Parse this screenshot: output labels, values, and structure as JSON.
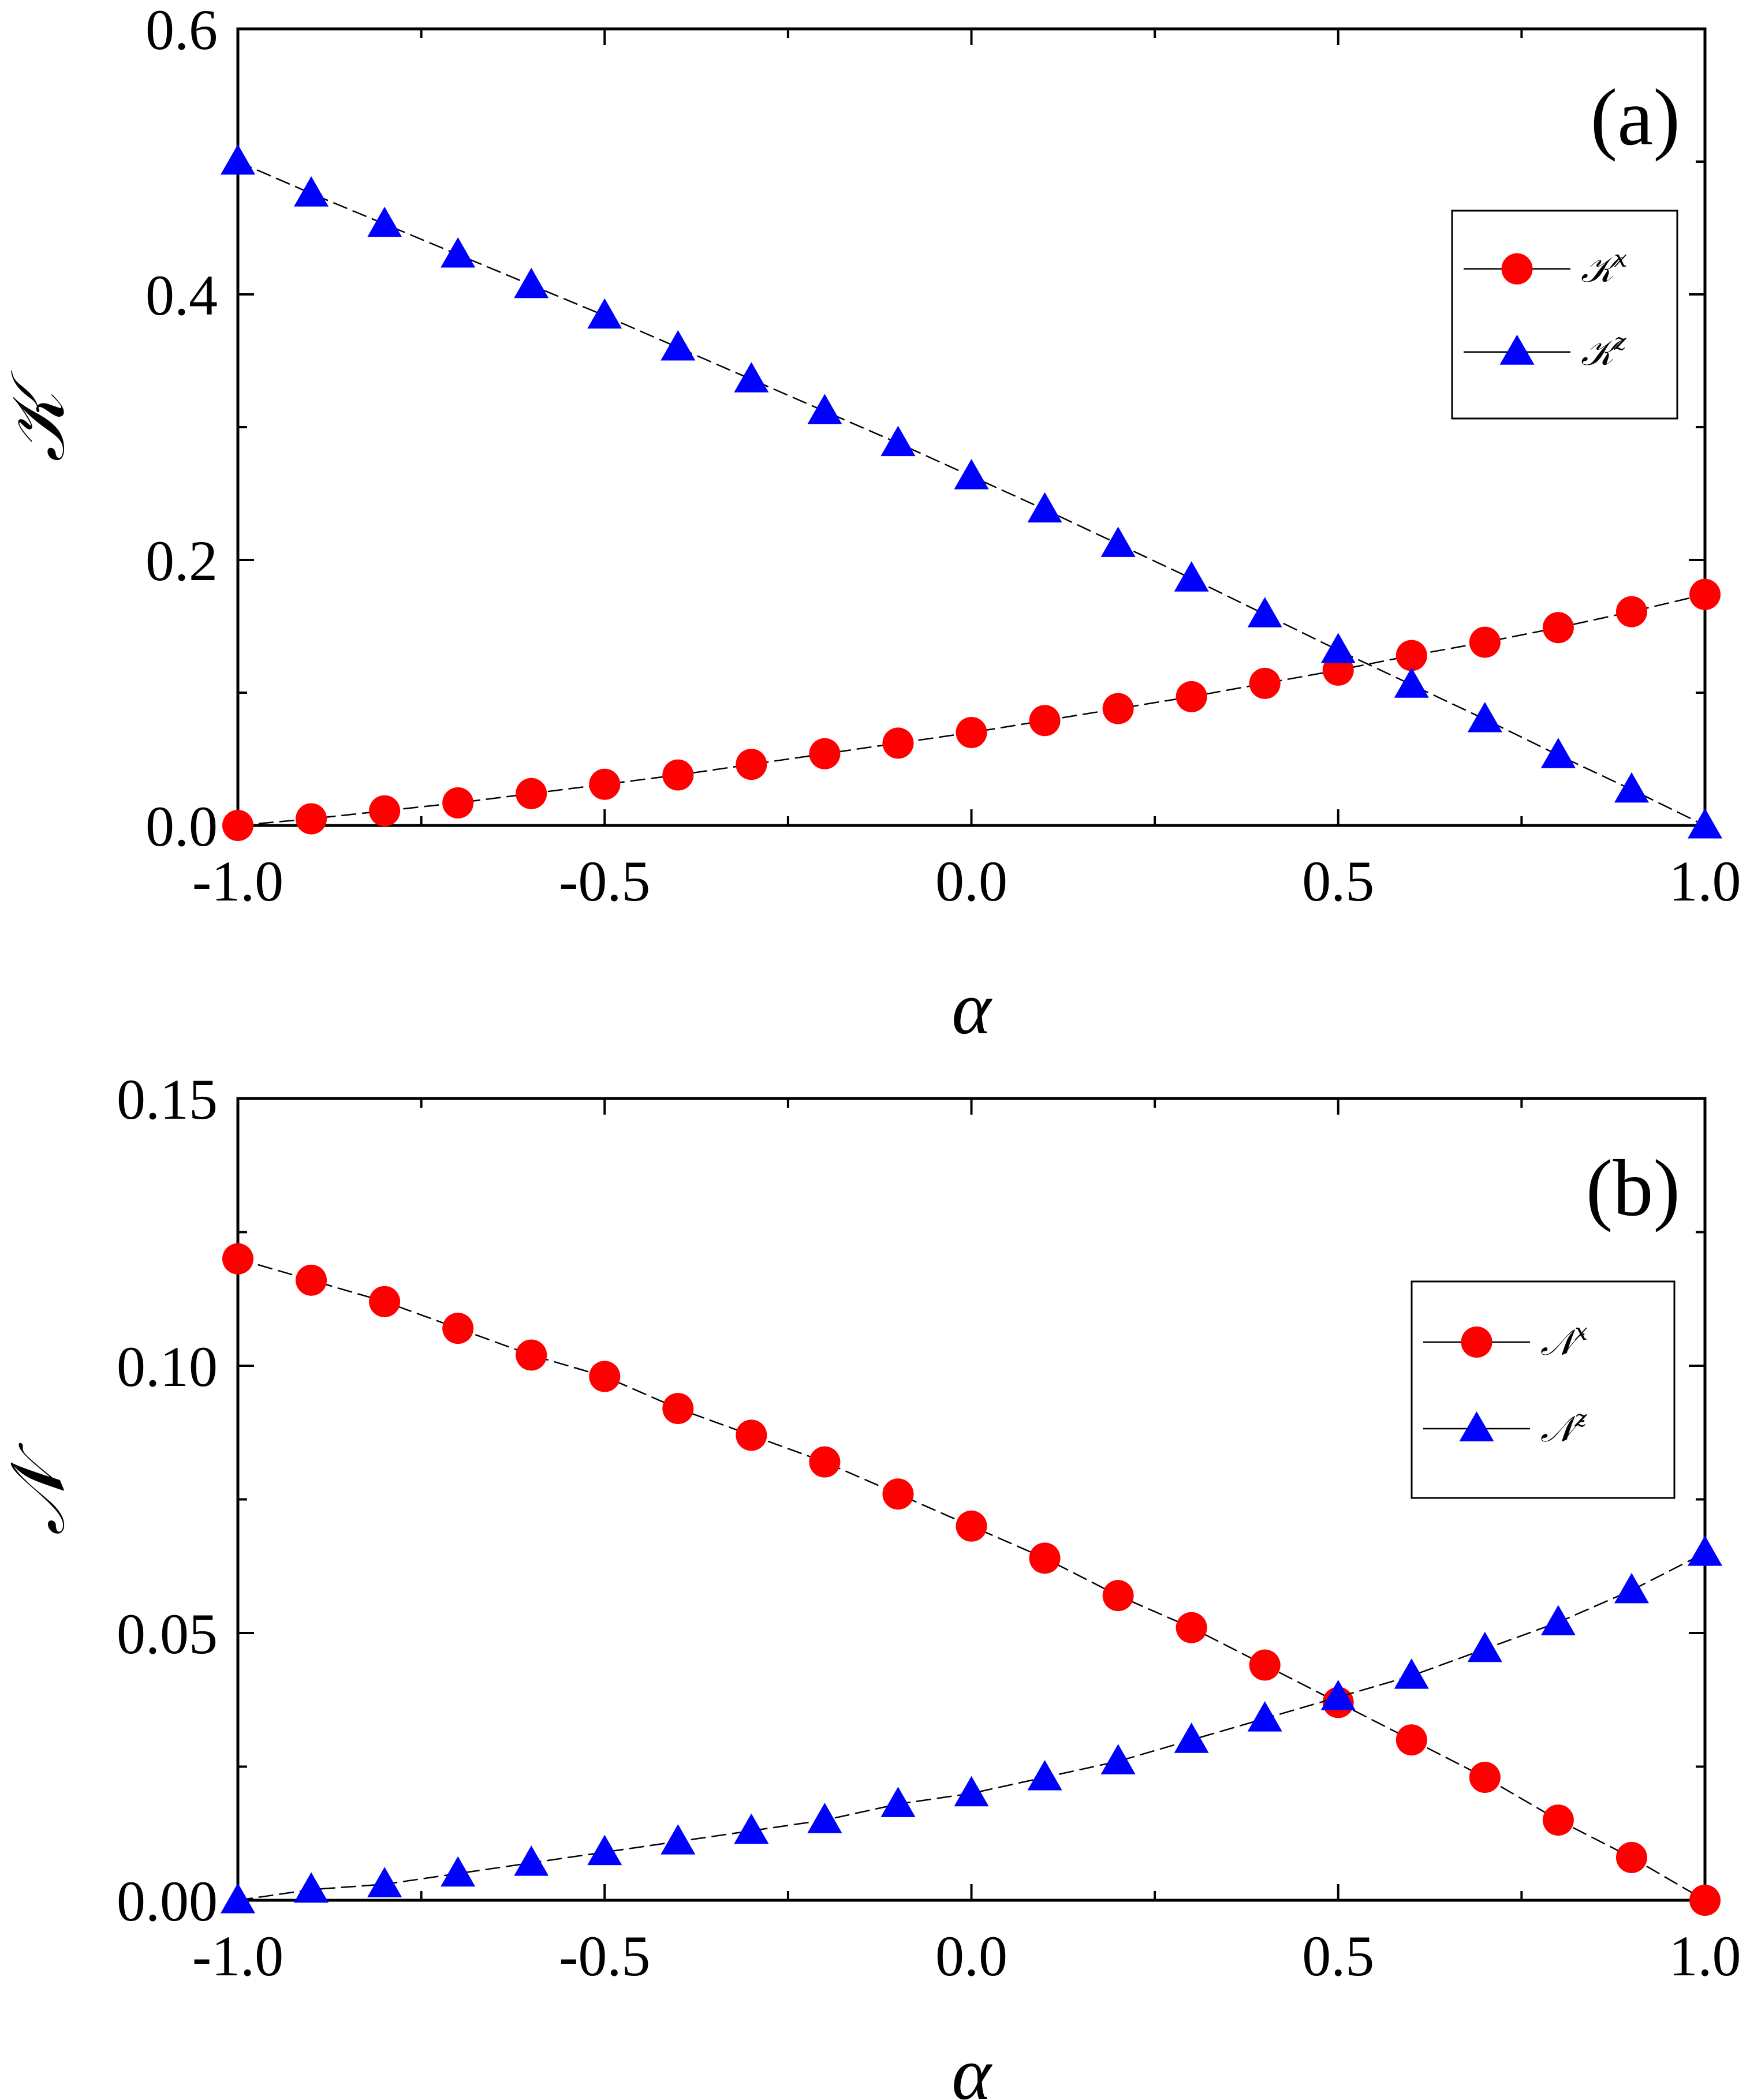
{
  "chart_data": [
    {
      "type": "line",
      "panel_label": "(a)",
      "xlabel": "α",
      "ylabel": "𝒦",
      "xlim": [
        -1.0,
        1.0
      ],
      "ylim": [
        0.0,
        0.6
      ],
      "x_ticks": [
        "-1.0",
        "-0.5",
        "0.0",
        "0.5",
        "1.0"
      ],
      "y_ticks": [
        "0.0",
        "0.2",
        "0.4",
        "0.6"
      ],
      "x_tick_values": [
        -1.0,
        -0.5,
        0.0,
        0.5,
        1.0
      ],
      "y_tick_values": [
        0.0,
        0.2,
        0.4,
        0.6
      ],
      "legend_position": "upper-right",
      "x": [
        -1.0,
        -0.9,
        -0.8,
        -0.7,
        -0.6,
        -0.5,
        -0.4,
        -0.3,
        -0.2,
        -0.1,
        0.0,
        0.1,
        0.2,
        0.3,
        0.4,
        0.5,
        0.6,
        0.7,
        0.8,
        0.9,
        1.0
      ],
      "series": [
        {
          "name": "𝒦x",
          "base": "𝒦",
          "sup": "x",
          "marker": "circle",
          "color": "#ff0000",
          "values": [
            0.0,
            0.005,
            0.011,
            0.017,
            0.024,
            0.031,
            0.038,
            0.046,
            0.054,
            0.062,
            0.07,
            0.079,
            0.088,
            0.097,
            0.107,
            0.117,
            0.128,
            0.138,
            0.149,
            0.161,
            0.174
          ]
        },
        {
          "name": "𝒦z",
          "base": "𝒦",
          "sup": "z",
          "marker": "triangle",
          "color": "#0000ff",
          "values": [
            0.5,
            0.476,
            0.453,
            0.43,
            0.407,
            0.384,
            0.36,
            0.336,
            0.312,
            0.288,
            0.263,
            0.238,
            0.212,
            0.186,
            0.159,
            0.132,
            0.106,
            0.08,
            0.053,
            0.027,
            0.0
          ]
        }
      ]
    },
    {
      "type": "line",
      "panel_label": "(b)",
      "xlabel": "α",
      "ylabel": "𝒩",
      "xlim": [
        -1.0,
        1.0
      ],
      "ylim": [
        0.0,
        0.15
      ],
      "x_ticks": [
        "-1.0",
        "-0.5",
        "0.0",
        "0.5",
        "1.0"
      ],
      "y_ticks": [
        "0.00",
        "0.05",
        "0.10",
        "0.15"
      ],
      "x_tick_values": [
        -1.0,
        -0.5,
        0.0,
        0.5,
        1.0
      ],
      "y_tick_values": [
        0.0,
        0.05,
        0.1,
        0.15
      ],
      "legend_position": "right",
      "x": [
        -1.0,
        -0.9,
        -0.8,
        -0.7,
        -0.6,
        -0.5,
        -0.4,
        -0.3,
        -0.2,
        -0.1,
        0.0,
        0.1,
        0.2,
        0.3,
        0.4,
        0.5,
        0.6,
        0.7,
        0.8,
        0.9,
        1.0
      ],
      "series": [
        {
          "name": "𝒩x",
          "base": "𝒩",
          "sup": "x",
          "marker": "circle",
          "color": "#ff0000",
          "values": [
            0.12,
            0.116,
            0.112,
            0.107,
            0.102,
            0.098,
            0.092,
            0.087,
            0.082,
            0.076,
            0.07,
            0.064,
            0.057,
            0.051,
            0.044,
            0.037,
            0.03,
            0.023,
            0.015,
            0.008,
            0.0
          ]
        },
        {
          "name": "𝒩z",
          "base": "𝒩",
          "sup": "z",
          "marker": "triangle",
          "color": "#0000ff",
          "values": [
            0.0,
            0.002,
            0.003,
            0.005,
            0.007,
            0.009,
            0.011,
            0.013,
            0.015,
            0.018,
            0.02,
            0.023,
            0.026,
            0.03,
            0.034,
            0.038,
            0.042,
            0.047,
            0.052,
            0.058,
            0.065
          ]
        }
      ]
    }
  ]
}
